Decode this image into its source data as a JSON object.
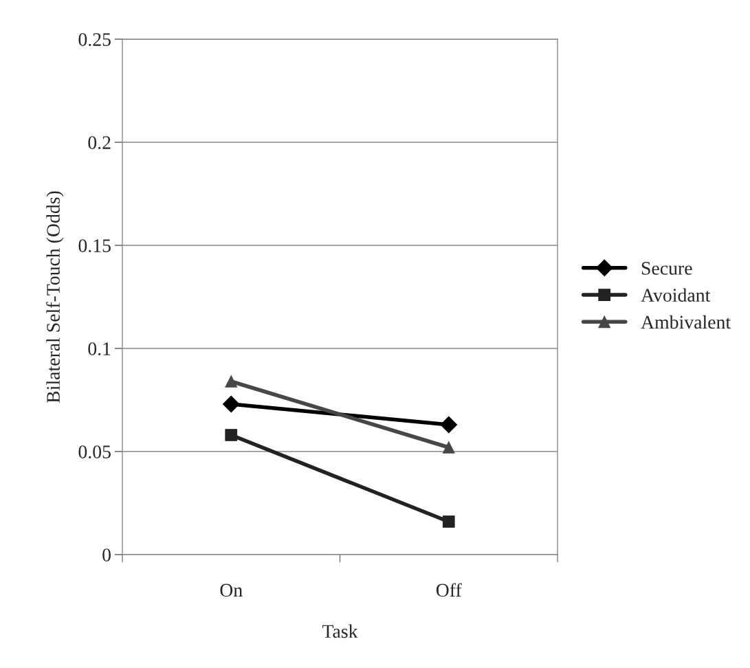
{
  "chart_data": {
    "type": "line",
    "xlabel": "Task",
    "ylabel": "Bilateral Self-Touch (Odds)",
    "categories": [
      "On",
      "Off"
    ],
    "series": [
      {
        "name": "Secure",
        "color": "#000000",
        "marker": "diamond",
        "values": [
          0.073,
          0.063
        ]
      },
      {
        "name": "Avoidant",
        "color": "#222222",
        "marker": "square",
        "values": [
          0.058,
          0.016
        ]
      },
      {
        "name": "Ambivalent",
        "color": "#474747",
        "marker": "triangle",
        "values": [
          0.084,
          0.052
        ]
      }
    ],
    "ylim": [
      0,
      0.25
    ],
    "yticks": [
      0,
      0.05,
      0.1,
      0.15,
      0.2,
      0.25
    ],
    "grid": "y",
    "legend": "right"
  }
}
